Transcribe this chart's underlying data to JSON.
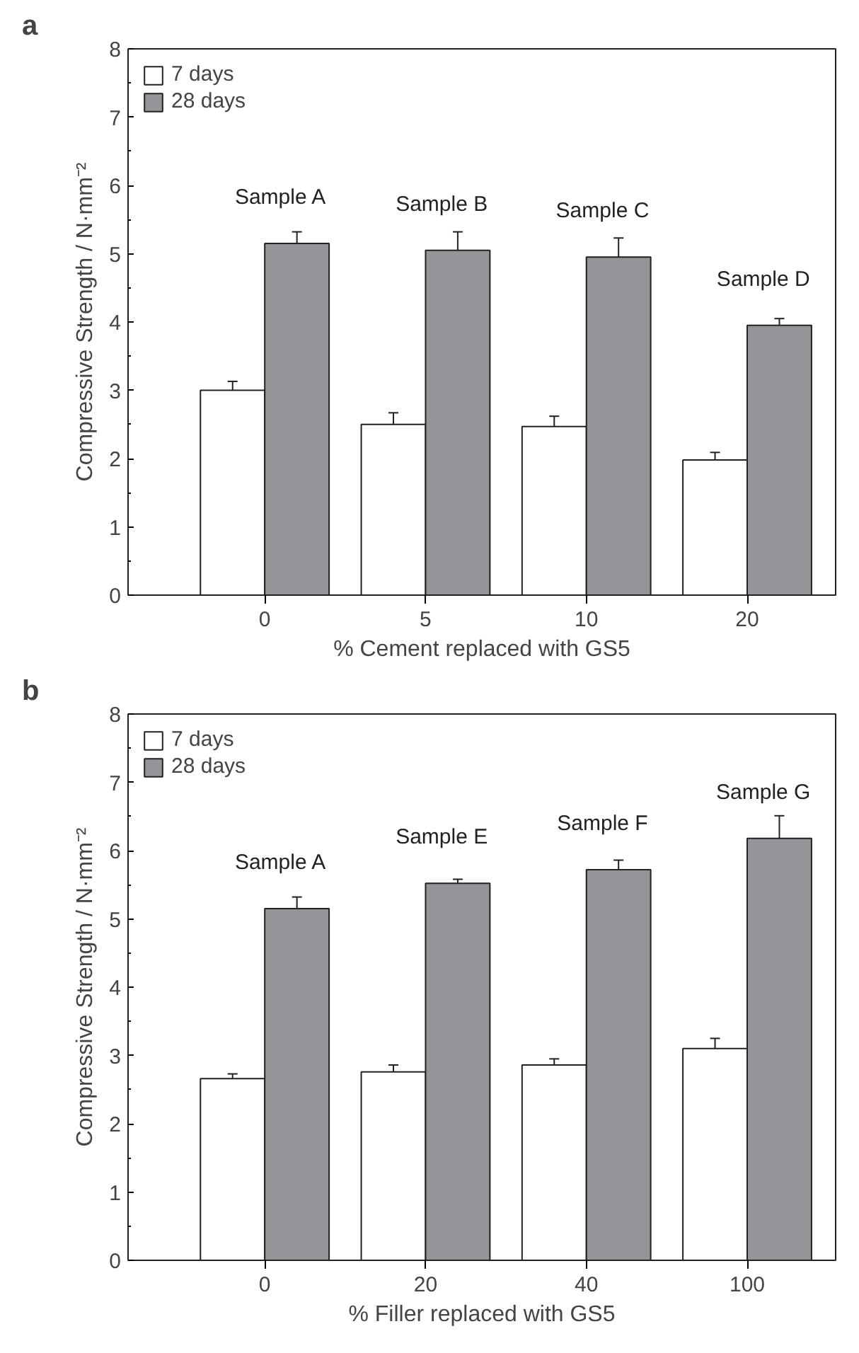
{
  "chart_data": [
    {
      "type": "bar",
      "title": "a",
      "xlabel": "% Cement replaced with GS5",
      "ylabel": "Compressive Strength / N·mm⁻²",
      "categories": [
        "0",
        "5",
        "10",
        "20"
      ],
      "ylim": [
        0,
        8
      ],
      "yticks": [
        0,
        1,
        2,
        3,
        4,
        5,
        6,
        7,
        8
      ],
      "legend": "top left",
      "grid": false,
      "series": [
        {
          "name": "7 days",
          "color": "#ffffff",
          "values": [
            3.0,
            2.5,
            2.47,
            1.98
          ],
          "errors": [
            0.13,
            0.17,
            0.15,
            0.11
          ]
        },
        {
          "name": "28 days",
          "color": "#939598",
          "values": [
            5.15,
            5.05,
            4.95,
            3.95
          ],
          "errors": [
            0.17,
            0.27,
            0.28,
            0.1
          ]
        }
      ],
      "annotations": [
        {
          "text": "Sample A",
          "x": "0",
          "y": 5.15
        },
        {
          "text": "Sample B",
          "x": "5",
          "y": 5.05
        },
        {
          "text": "Sample C",
          "x": "10",
          "y": 4.95
        },
        {
          "text": "Sample D",
          "x": "20",
          "y": 3.95
        }
      ]
    },
    {
      "type": "bar",
      "title": "b",
      "xlabel": "% Filler replaced with GS5",
      "ylabel": "Compressive Strength / N·mm⁻²",
      "categories": [
        "0",
        "20",
        "40",
        "100"
      ],
      "ylim": [
        0,
        8
      ],
      "yticks": [
        0,
        1,
        2,
        3,
        4,
        5,
        6,
        7,
        8
      ],
      "legend": "top left",
      "grid": false,
      "series": [
        {
          "name": "7 days",
          "color": "#ffffff",
          "values": [
            2.66,
            2.76,
            2.86,
            3.1
          ],
          "errors": [
            0.07,
            0.1,
            0.09,
            0.15
          ]
        },
        {
          "name": "28 days",
          "color": "#939598",
          "values": [
            5.15,
            5.52,
            5.72,
            6.18
          ],
          "errors": [
            0.17,
            0.06,
            0.14,
            0.33
          ]
        }
      ],
      "annotations": [
        {
          "text": "Sample A",
          "x": "0",
          "y": 5.15
        },
        {
          "text": "Sample E",
          "x": "20",
          "y": 5.52
        },
        {
          "text": "Sample F",
          "x": "40",
          "y": 5.72
        },
        {
          "text": "Sample G",
          "x": "100",
          "y": 6.18
        }
      ]
    }
  ]
}
